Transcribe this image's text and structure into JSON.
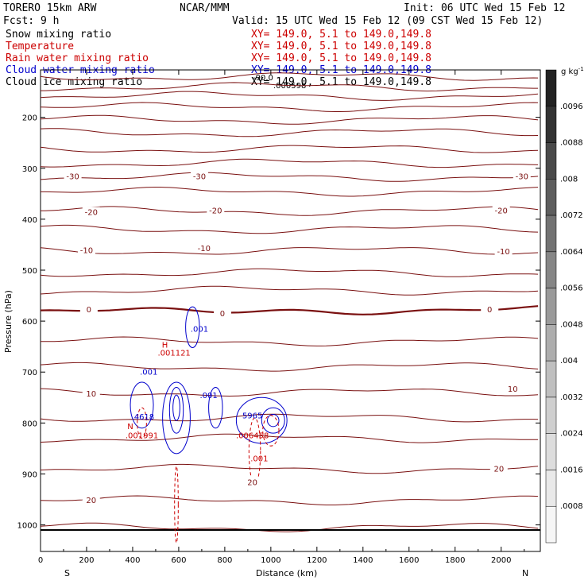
{
  "header": {
    "model": "TORERO  15km ARW",
    "org": "NCAR/MMM",
    "init": "Init: 06 UTC Wed 15 Feb 12",
    "fcst": "Fcst:    9 h",
    "valid": "Valid: 15 UTC Wed 15 Feb 12 (09 CST Wed 15 Feb 12)"
  },
  "fields": [
    {
      "name": "Snow mixing ratio",
      "xy": "XY= 149.0,  5.1 to 149.0,149.8",
      "color": "#000000"
    },
    {
      "name": "Temperature",
      "xy": "XY= 149.0,  5.1 to 149.0,149.8",
      "color": "#cc0000"
    },
    {
      "name": "Rain water mixing ratio",
      "xy": "XY= 149.0,  5.1 to 149.0,149.8",
      "color": "#cc0000"
    },
    {
      "name": "Cloud water mixing ratio",
      "xy": "XY= 149.0,  5.1 to 149.0,149.8",
      "color": "#0000cc"
    },
    {
      "name": "Cloud ice mixing ratio",
      "xy": "XY= 149.0,  5.1 to 149.0,149.8",
      "color": "#000000"
    }
  ],
  "overlap_labels": {
    "a": "-90.0",
    "b": ".000598"
  },
  "colorbar": {
    "unit": "g kg",
    "unit_sup": "-1",
    "ticks": [
      ".0096",
      ".0088",
      ".008",
      ".0072",
      ".0064",
      ".0056",
      ".0048",
      ".004",
      ".0032",
      ".0024",
      ".0016",
      ".0008"
    ],
    "shades": [
      "#222222",
      "#333333",
      "#4a4a4a",
      "#5e5e5e",
      "#727272",
      "#868686",
      "#9a9a9a",
      "#adadad",
      "#bfbfbf",
      "#cfcfcf",
      "#dddddd",
      "#e9e9e9",
      "#f6f6f6"
    ]
  },
  "chart_data": {
    "type": "contour-cross-section",
    "xlabel": "Distance (km)",
    "ylabel": "Pressure (hPa)",
    "xlim": [
      0,
      2170
    ],
    "ylim": [
      1030,
      100
    ],
    "x_ticks": [
      0,
      200,
      400,
      600,
      800,
      1000,
      1200,
      1400,
      1600,
      1800,
      2000
    ],
    "y_ticks": [
      200,
      300,
      400,
      500,
      600,
      700,
      800,
      900,
      1000
    ],
    "direction_labels": {
      "left": "S",
      "right": "N"
    },
    "temperature_isotherm_labels": [
      {
        "value": "-30",
        "x": 140,
        "p": 317
      },
      {
        "value": "-30",
        "x": 690,
        "p": 317
      },
      {
        "value": "-30",
        "x": 2090,
        "p": 317
      },
      {
        "value": "-20",
        "x": 220,
        "p": 387
      },
      {
        "value": "-20",
        "x": 760,
        "p": 384
      },
      {
        "value": "-20",
        "x": 2000,
        "p": 384
      },
      {
        "value": "-10",
        "x": 200,
        "p": 462
      },
      {
        "value": "-10",
        "x": 710,
        "p": 458
      },
      {
        "value": "-10",
        "x": 2010,
        "p": 464
      },
      {
        "value": "0",
        "x": 210,
        "p": 578
      },
      {
        "value": "0",
        "x": 790,
        "p": 586
      },
      {
        "value": "0",
        "x": 1950,
        "p": 578
      },
      {
        "value": "10",
        "x": 220,
        "p": 743
      },
      {
        "value": "10",
        "x": 2050,
        "p": 734
      },
      {
        "value": "20",
        "x": 220,
        "p": 952
      },
      {
        "value": "20",
        "x": 920,
        "p": 917
      },
      {
        "value": "20",
        "x": 1990,
        "p": 891
      }
    ],
    "cloud_water_labels": [
      {
        "text": ".001",
        "x": 690,
        "p": 621
      },
      {
        "text": ".001",
        "x": 470,
        "p": 705
      },
      {
        "text": ".001",
        "x": 730,
        "p": 751
      },
      {
        "text": "4618",
        "x": 450,
        "p": 793
      },
      {
        "text": "5965",
        "x": 920,
        "p": 791
      }
    ],
    "rain_water_labels": [
      {
        "text": "H",
        "x": 540,
        "p": 652
      },
      {
        "text": ".001121",
        "x": 580,
        "p": 668
      },
      {
        "text": "N",
        "x": 390,
        "p": 812
      },
      {
        "text": ".001991",
        "x": 440,
        "p": 830
      },
      {
        "text": ".006458",
        "x": 920,
        "p": 830
      },
      {
        "text": ".001",
        "x": 950,
        "p": 875
      }
    ]
  }
}
